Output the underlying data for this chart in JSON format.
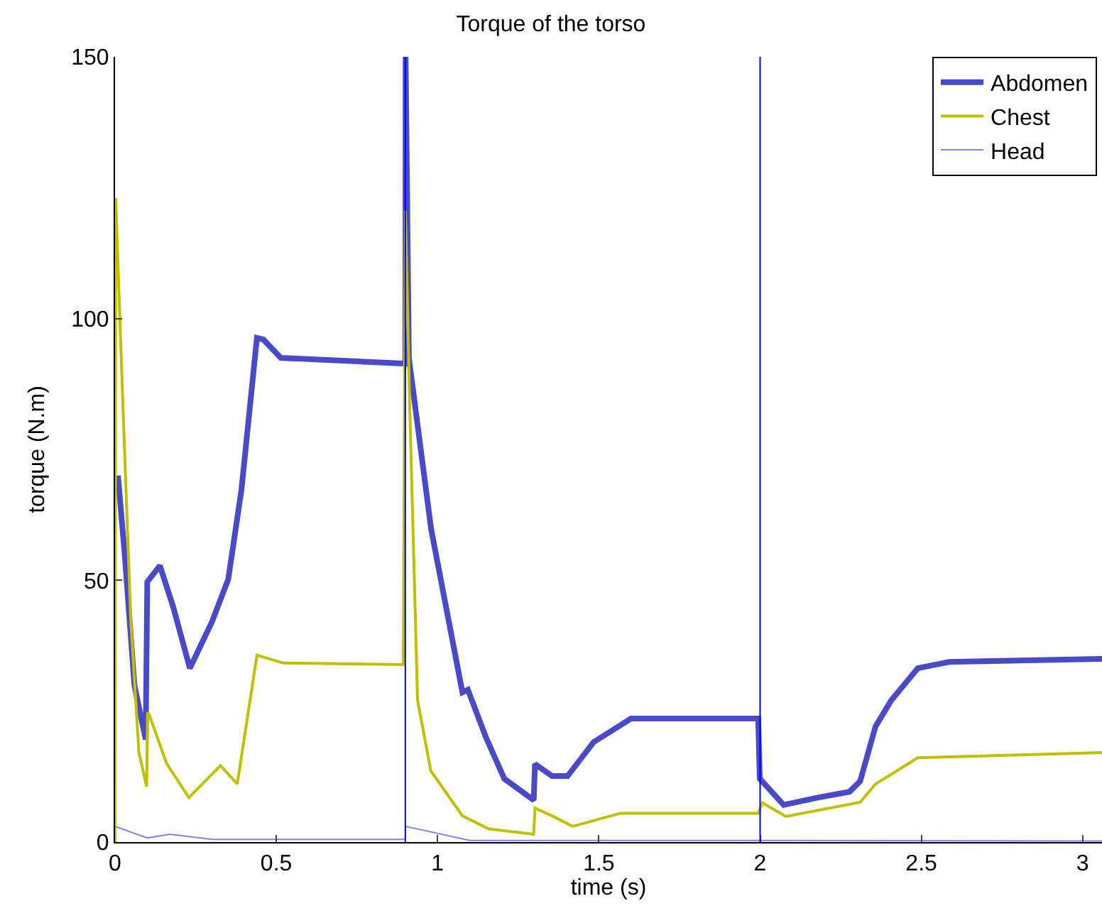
{
  "chart_data": {
    "type": "line",
    "title": "Torque of the torso",
    "xlabel": "time (s)",
    "ylabel": "torque (N.m)",
    "xlim": [
      0,
      3.06
    ],
    "ylim": [
      0,
      150
    ],
    "xticks": [
      0,
      0.5,
      1,
      1.5,
      2,
      2.5,
      3
    ],
    "yticks": [
      0,
      50,
      100,
      150
    ],
    "legend": "top right",
    "marker": "none",
    "line_style": "solid",
    "ref_lines": [
      {
        "axis": "x",
        "value": 0.9,
        "color": "#0000ff"
      },
      {
        "axis": "x",
        "value": 2,
        "color": "#0000ff"
      }
    ],
    "series": [
      {
        "name": "Abdomen",
        "color": "#4a4ac8",
        "x": [
          0.009,
          0.03,
          0.06,
          0.095,
          0.1,
          0.139,
          0.18,
          0.232,
          0.3,
          0.351,
          0.392,
          0.44,
          0.46,
          0.514,
          0.894,
          0.9,
          0.901,
          0.911,
          0.98,
          1.077,
          1.094,
          1.15,
          1.207,
          1.298,
          1.302,
          1.355,
          1.403,
          1.484,
          1.6,
          1.994,
          1.999,
          2.073,
          2.179,
          2.277,
          2.31,
          2.358,
          2.407,
          2.489,
          2.586,
          3.06
        ],
        "values": [
          70,
          55,
          30,
          19.6,
          49.7,
          52.8,
          45,
          33.2,
          42,
          50.2,
          67.3,
          96.3,
          96,
          92.5,
          91.4,
          91.4,
          150,
          92.5,
          59.8,
          28.6,
          29.1,
          20,
          12.1,
          8.0,
          14.9,
          12.6,
          12.6,
          19.1,
          23.6,
          23.6,
          12.1,
          7.1,
          8.5,
          9.6,
          11.6,
          22.1,
          27.1,
          33.2,
          34.4,
          35.0
        ]
      },
      {
        "name": "Chest",
        "color": "#c0c000",
        "x": [
          0,
          0.002,
          0.025,
          0.049,
          0.074,
          0.098,
          0.101,
          0.105,
          0.16,
          0.229,
          0.327,
          0.379,
          0.44,
          0.522,
          0.894,
          0.9,
          0.914,
          0.938,
          0.979,
          1.077,
          1.159,
          1.298,
          1.302,
          1.355,
          1.419,
          1.567,
          1.994,
          2.007,
          2.08,
          2.31,
          2.358,
          2.489,
          3.06
        ],
        "values": [
          0,
          123,
          82.4,
          42.2,
          17.1,
          10.6,
          24.7,
          24.5,
          15,
          8.5,
          14.6,
          11.1,
          35.7,
          34.2,
          33.9,
          120.6,
          82.4,
          27.1,
          13.6,
          5.0,
          2.5,
          1.5,
          6.5,
          5.0,
          3.0,
          5.5,
          5.5,
          7.5,
          4.9,
          7.6,
          11.1,
          16.1,
          17.1
        ]
      },
      {
        "name": "Head",
        "color": "#8080ff",
        "x": [
          0,
          0.1,
          0.17,
          0.3,
          0.9,
          0.901,
          1.1,
          2,
          3.06
        ],
        "values": [
          3,
          0.8,
          1.5,
          0.5,
          0.5,
          3,
          0.3,
          0.3,
          0.2
        ]
      }
    ]
  }
}
